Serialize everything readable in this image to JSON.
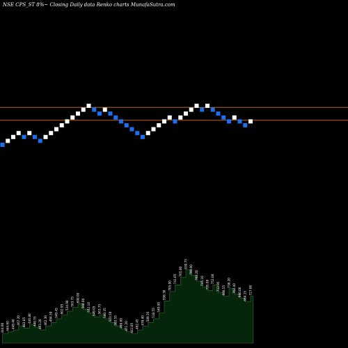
{
  "colors": {
    "background": "#000000",
    "brick_up": "#ffffff",
    "brick_down": "#1e6ff0",
    "level_line": "#b8651b",
    "volume_fill": "#06260b",
    "volume_stroke": "#3d6b3d",
    "text": "#ffffff"
  },
  "chart_data": {
    "type": "renko",
    "title": "NSE CPS_ST 8%~  Closing Daily data  Renko  charts MunafaSutra.com",
    "brick_percent": 8,
    "grid": false,
    "bricks": [
      {
        "dir": "down",
        "level": 0
      },
      {
        "dir": "up",
        "level": 1
      },
      {
        "dir": "up",
        "level": 2
      },
      {
        "dir": "up",
        "level": 3
      },
      {
        "dir": "down",
        "level": 2
      },
      {
        "dir": "up",
        "level": 3
      },
      {
        "dir": "down",
        "level": 2
      },
      {
        "dir": "down",
        "level": 1
      },
      {
        "dir": "up",
        "level": 2
      },
      {
        "dir": "up",
        "level": 3
      },
      {
        "dir": "up",
        "level": 4
      },
      {
        "dir": "up",
        "level": 5
      },
      {
        "dir": "up",
        "level": 6
      },
      {
        "dir": "up",
        "level": 7
      },
      {
        "dir": "up",
        "level": 8
      },
      {
        "dir": "up",
        "level": 9
      },
      {
        "dir": "up",
        "level": 10
      },
      {
        "dir": "down",
        "level": 9
      },
      {
        "dir": "down",
        "level": 8
      },
      {
        "dir": "up",
        "level": 9
      },
      {
        "dir": "down",
        "level": 8
      },
      {
        "dir": "down",
        "level": 7
      },
      {
        "dir": "down",
        "level": 6
      },
      {
        "dir": "down",
        "level": 5
      },
      {
        "dir": "down",
        "level": 4
      },
      {
        "dir": "down",
        "level": 3
      },
      {
        "dir": "down",
        "level": 2
      },
      {
        "dir": "up",
        "level": 3
      },
      {
        "dir": "up",
        "level": 4
      },
      {
        "dir": "up",
        "level": 5
      },
      {
        "dir": "up",
        "level": 6
      },
      {
        "dir": "up",
        "level": 7
      },
      {
        "dir": "down",
        "level": 6
      },
      {
        "dir": "up",
        "level": 7
      },
      {
        "dir": "up",
        "level": 8
      },
      {
        "dir": "up",
        "level": 9
      },
      {
        "dir": "up",
        "level": 10
      },
      {
        "dir": "down",
        "level": 9
      },
      {
        "dir": "up",
        "level": 10
      },
      {
        "dir": "down",
        "level": 9
      },
      {
        "dir": "down",
        "level": 8
      },
      {
        "dir": "down",
        "level": 7
      },
      {
        "dir": "down",
        "level": 6
      },
      {
        "dir": "up",
        "level": 7
      },
      {
        "dir": "down",
        "level": 6
      },
      {
        "dir": "down",
        "level": 5
      },
      {
        "dir": "up",
        "level": 6
      }
    ],
    "reference_levels": [
      9.6,
      6.3
    ],
    "volume": [
      {
        "v": 10,
        "label": "444.60"
      },
      {
        "v": 12,
        "label": "444.60"
      },
      {
        "v": 14,
        "label": "449.40"
      },
      {
        "v": 18,
        "label": "467.20"
      },
      {
        "v": 16,
        "label": "483.85"
      },
      {
        "v": 20,
        "label": "446.80"
      },
      {
        "v": 17,
        "label": "448.55"
      },
      {
        "v": 14,
        "label": "463.20"
      },
      {
        "v": 18,
        "label": "462.30"
      },
      {
        "v": 22,
        "label": "494.50"
      },
      {
        "v": 26,
        "label": "549.45"
      },
      {
        "v": 30,
        "label": "602.95"
      },
      {
        "v": 34,
        "label": "524.90"
      },
      {
        "v": 38,
        "label": "563.75"
      },
      {
        "v": 42,
        "label": "600.00"
      },
      {
        "v": 36,
        "label": "560.00"
      },
      {
        "v": 32,
        "label": "552.10"
      },
      {
        "v": 28,
        "label": "549.05"
      },
      {
        "v": 30,
        "label": "563.75"
      },
      {
        "v": 26,
        "label": "540.35"
      },
      {
        "v": 22,
        "label": "523.50"
      },
      {
        "v": 18,
        "label": "503.55"
      },
      {
        "v": 15,
        "label": "490.60"
      },
      {
        "v": 12,
        "label": "471.20"
      },
      {
        "v": 10,
        "label": "441.05"
      },
      {
        "v": 14,
        "label": "462.45"
      },
      {
        "v": 18,
        "label": "478.40"
      },
      {
        "v": 22,
        "label": "500.35"
      },
      {
        "v": 26,
        "label": "518.55"
      },
      {
        "v": 32,
        "label": "540.00"
      },
      {
        "v": 45,
        "label": "598.30"
      },
      {
        "v": 55,
        "label": "705.00"
      },
      {
        "v": 62,
        "label": "741.05"
      },
      {
        "v": 70,
        "label": "765.00"
      },
      {
        "v": 78,
        "label": "830.75"
      },
      {
        "v": 72,
        "label": "790.00"
      },
      {
        "v": 66,
        "label": "760.20"
      },
      {
        "v": 60,
        "label": "745.10"
      },
      {
        "v": 56,
        "label": "735.00"
      },
      {
        "v": 62,
        "label": "752.00"
      },
      {
        "v": 54,
        "label": "712.95"
      },
      {
        "v": 50,
        "label": "698.55"
      },
      {
        "v": 58,
        "label": "738.20"
      },
      {
        "v": 52,
        "label": "702.40"
      },
      {
        "v": 48,
        "label": "680.00"
      },
      {
        "v": 44,
        "label": "664.15"
      },
      {
        "v": 50,
        "label": "727.00"
      }
    ]
  }
}
